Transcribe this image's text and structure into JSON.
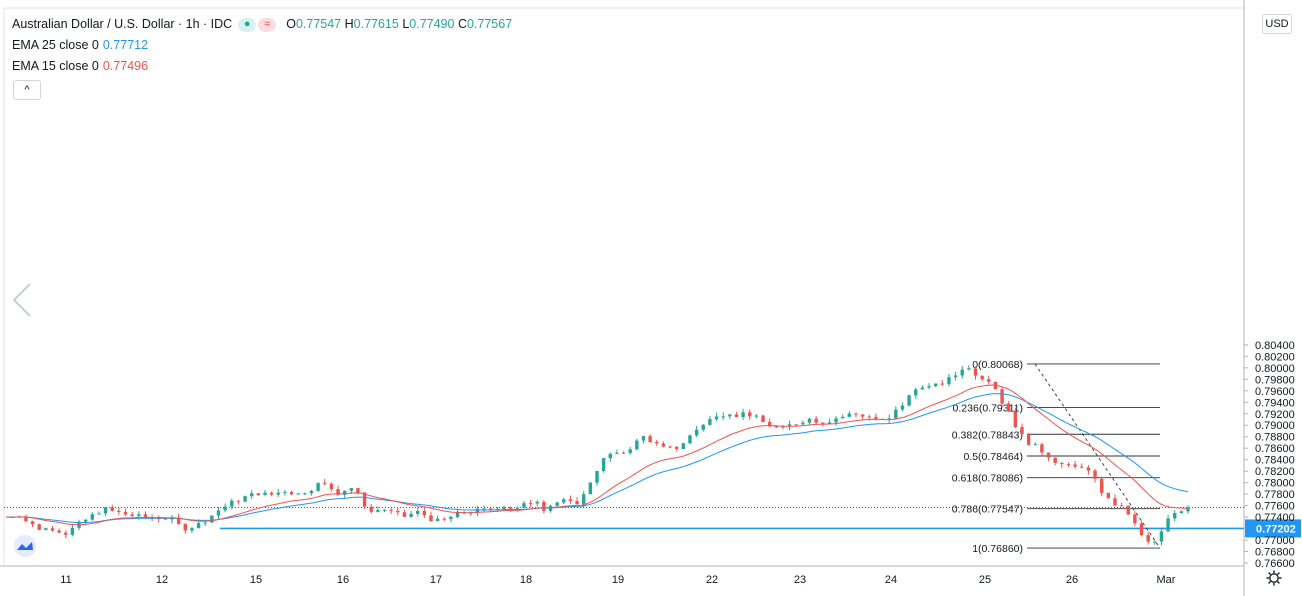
{
  "header": {
    "title": "Australian Dollar / U.S. Dollar · 1h · IDC",
    "ohlc": {
      "o_label": "O",
      "o": "0.77547",
      "h_label": "H",
      "h": "0.77615",
      "l_label": "L",
      "l": "0.77490",
      "c_label": "C",
      "c": "0.77567"
    },
    "badge_wave": "≈"
  },
  "indicators": [
    {
      "label": "EMA 25 close 0",
      "value": "0.77712",
      "color": "#2196f3"
    },
    {
      "label": "EMA 15 close 0",
      "value": "0.77496",
      "color": "#ef5350"
    }
  ],
  "currency_button": "USD",
  "collapse_button": "^",
  "colors": {
    "up": "#26a69a",
    "down": "#ef5350",
    "ema25": "#2196f3",
    "ema15": "#ef5350",
    "support": "#2196f3"
  },
  "chart_data": {
    "type": "candlestick",
    "symbol": "AUDUSD",
    "interval": "1h",
    "x_tick_labels": [
      "11",
      "12",
      "15",
      "16",
      "17",
      "18",
      "19",
      "22",
      "23",
      "24",
      "25",
      "26",
      "Mar"
    ],
    "y_tick_labels": [
      "0.76600",
      "0.76800",
      "0.77000",
      "0.77400",
      "0.77600",
      "0.77800",
      "0.78000",
      "0.78200",
      "0.78400",
      "0.78600",
      "0.78800",
      "0.79000",
      "0.79200",
      "0.79400",
      "0.79600",
      "0.79800",
      "0.80000",
      "0.80200",
      "0.80400"
    ],
    "ylim": [
      0.765,
      0.8045
    ],
    "support_level": {
      "value": 0.77202,
      "label": "0.77202"
    },
    "last_price": 0.77567,
    "fibonacci": [
      {
        "label": "0(0.80068)",
        "value": 0.80068
      },
      {
        "label": "0.236(0.79311)",
        "value": 0.79311
      },
      {
        "label": "0.382(0.78843)",
        "value": 0.78843
      },
      {
        "label": "0.5(0.78464)",
        "value": 0.78464
      },
      {
        "label": "0.618(0.78086)",
        "value": 0.78086
      },
      {
        "label": "0.786(0.77547)",
        "value": 0.77547
      },
      {
        "label": "1(0.76860)",
        "value": 0.7686
      }
    ],
    "price_path": [
      [
        0,
        0.774
      ],
      [
        6,
        0.7745
      ],
      [
        10,
        0.773
      ],
      [
        16,
        0.7718
      ],
      [
        20,
        0.7722
      ],
      [
        27,
        0.7712
      ],
      [
        32,
        0.7725
      ],
      [
        38,
        0.774
      ],
      [
        44,
        0.7755
      ],
      [
        48,
        0.775
      ],
      [
        54,
        0.7745
      ],
      [
        58,
        0.7742
      ],
      [
        64,
        0.7738
      ],
      [
        70,
        0.774
      ],
      [
        75,
        0.7735
      ],
      [
        80,
        0.772
      ],
      [
        86,
        0.7725
      ],
      [
        92,
        0.774
      ],
      [
        96,
        0.7752
      ],
      [
        102,
        0.7765
      ],
      [
        108,
        0.7775
      ],
      [
        114,
        0.7782
      ],
      [
        119,
        0.7778
      ],
      [
        126,
        0.7786
      ],
      [
        132,
        0.778
      ],
      [
        138,
        0.779
      ],
      [
        142,
        0.78
      ],
      [
        147,
        0.779
      ],
      [
        151,
        0.778
      ],
      [
        155,
        0.7795
      ],
      [
        160,
        0.7775
      ],
      [
        164,
        0.7748
      ],
      [
        170,
        0.7755
      ],
      [
        176,
        0.7745
      ],
      [
        181,
        0.774
      ],
      [
        185,
        0.775
      ],
      [
        190,
        0.7742
      ],
      [
        194,
        0.7732
      ],
      [
        198,
        0.7735
      ],
      [
        204,
        0.7745
      ],
      [
        210,
        0.775
      ],
      [
        216,
        0.7752
      ],
      [
        222,
        0.7758
      ],
      [
        226,
        0.776
      ],
      [
        230,
        0.7752
      ],
      [
        236,
        0.7765
      ],
      [
        240,
        0.777
      ],
      [
        243,
        0.7755
      ],
      [
        248,
        0.7765
      ],
      [
        253,
        0.7768
      ],
      [
        256,
        0.7762
      ],
      [
        260,
        0.777
      ],
      [
        265,
        0.781
      ],
      [
        268,
        0.783
      ],
      [
        272,
        0.785
      ],
      [
        276,
        0.7848
      ],
      [
        280,
        0.7855
      ],
      [
        284,
        0.7868
      ],
      [
        288,
        0.788
      ],
      [
        292,
        0.7872
      ],
      [
        296,
        0.786
      ],
      [
        302,
        0.7858
      ],
      [
        306,
        0.787
      ],
      [
        310,
        0.7885
      ],
      [
        314,
        0.79
      ],
      [
        318,
        0.791
      ],
      [
        322,
        0.7915
      ],
      [
        326,
        0.7925
      ],
      [
        330,
        0.7918
      ],
      [
        334,
        0.7922
      ],
      [
        338,
        0.7915
      ],
      [
        342,
        0.7905
      ],
      [
        346,
        0.7898
      ],
      [
        350,
        0.7892
      ],
      [
        354,
        0.79
      ],
      [
        358,
        0.7905
      ],
      [
        362,
        0.7912
      ],
      [
        366,
        0.7908
      ],
      [
        370,
        0.7905
      ],
      [
        374,
        0.7912
      ],
      [
        378,
        0.7915
      ],
      [
        382,
        0.792
      ],
      [
        386,
        0.7918
      ],
      [
        390,
        0.7915
      ],
      [
        394,
        0.791
      ],
      [
        398,
        0.7905
      ],
      [
        402,
        0.7925
      ],
      [
        406,
        0.794
      ],
      [
        410,
        0.796
      ],
      [
        414,
        0.797
      ],
      [
        418,
        0.7965
      ],
      [
        422,
        0.7972
      ],
      [
        426,
        0.798
      ],
      [
        430,
        0.799
      ],
      [
        433,
        0.8005
      ],
      [
        436,
        0.7995
      ],
      [
        440,
        0.7985
      ],
      [
        444,
        0.798
      ],
      [
        447,
        0.7965
      ],
      [
        450,
        0.794
      ],
      [
        454,
        0.792
      ],
      [
        456,
        0.79
      ],
      [
        458,
        0.7885
      ],
      [
        462,
        0.787
      ],
      [
        466,
        0.786
      ],
      [
        470,
        0.785
      ],
      [
        474,
        0.7838
      ],
      [
        478,
        0.783
      ],
      [
        482,
        0.7825
      ],
      [
        486,
        0.783
      ],
      [
        490,
        0.7815
      ],
      [
        494,
        0.779
      ],
      [
        498,
        0.777
      ],
      [
        502,
        0.776
      ],
      [
        506,
        0.7752
      ],
      [
        509,
        0.7735
      ],
      [
        512,
        0.771
      ],
      [
        515,
        0.77
      ],
      [
        518,
        0.769
      ],
      [
        521,
        0.7705
      ],
      [
        524,
        0.773
      ],
      [
        527,
        0.7745
      ],
      [
        530,
        0.7752
      ],
      [
        534,
        0.7757
      ]
    ],
    "ema25_at_last": 0.77712,
    "ema15_at_last": 0.77496
  }
}
